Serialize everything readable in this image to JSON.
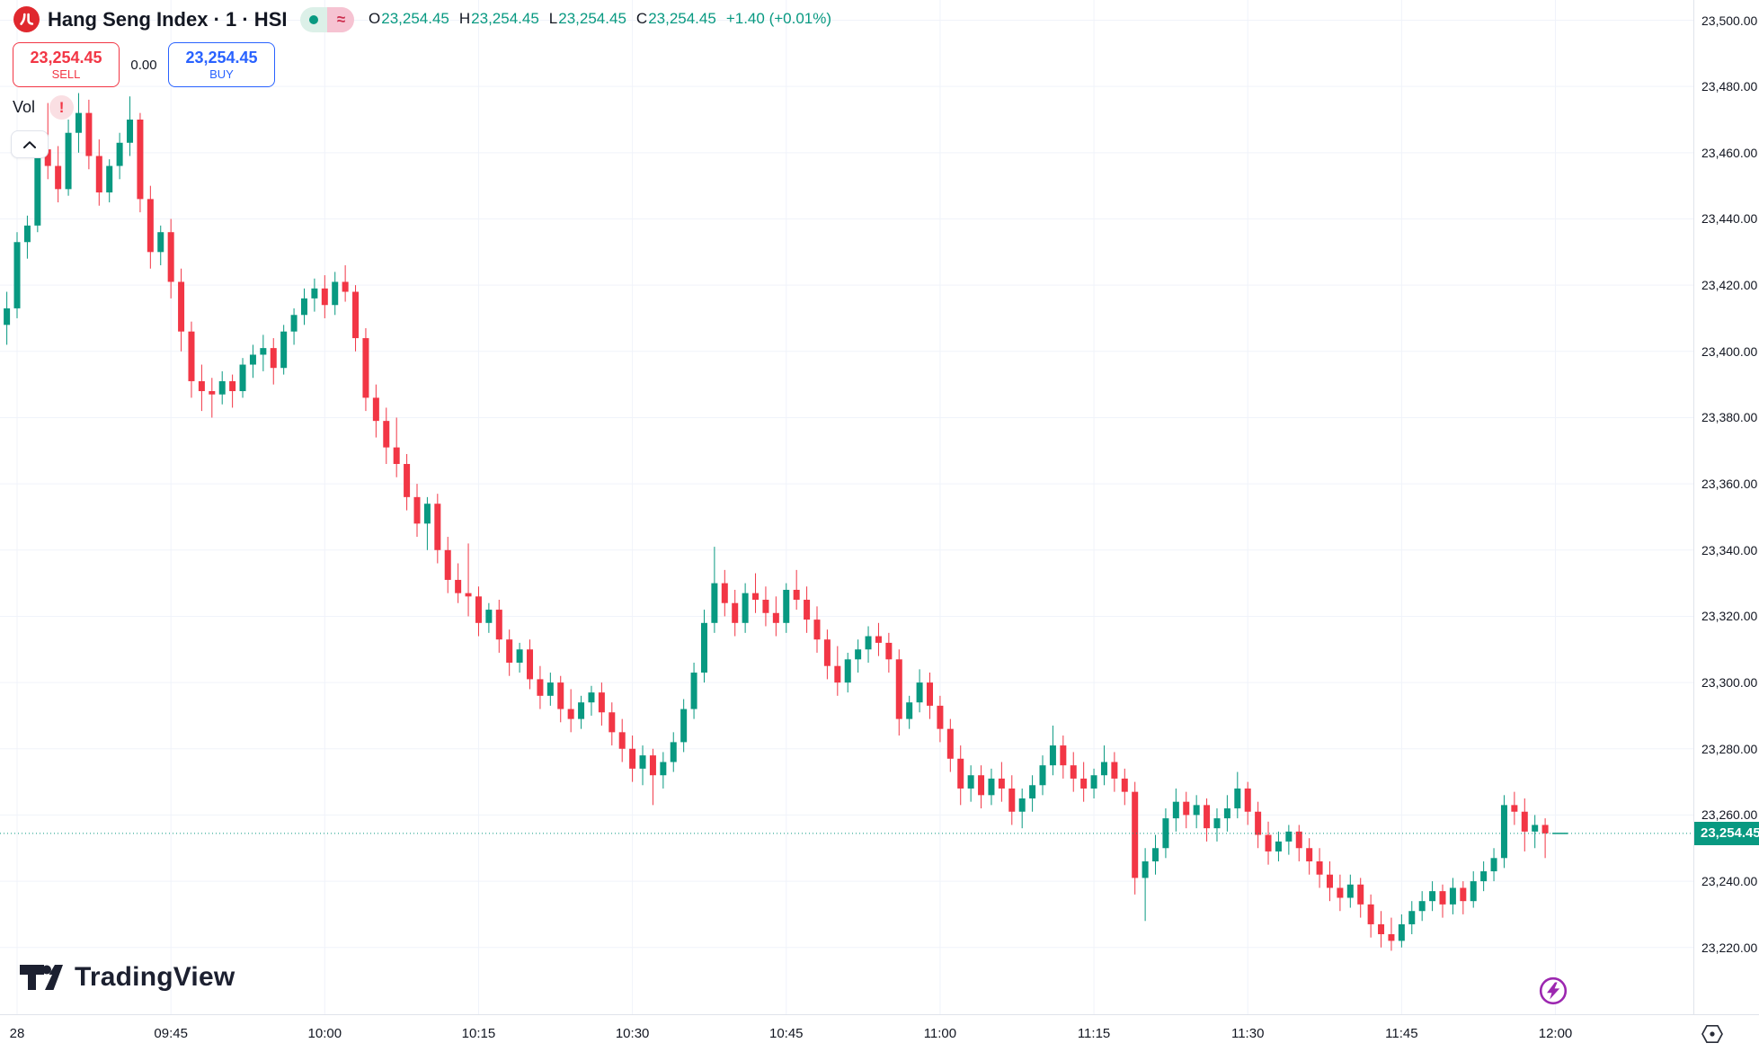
{
  "header": {
    "symbol_title": "Hang Seng Index · 1 · HSI",
    "delayed_symbol": "≈",
    "ohlc": {
      "open_label": "O",
      "open": "23,254.45",
      "high_label": "H",
      "high": "23,254.45",
      "low_label": "L",
      "low": "23,254.45",
      "close_label": "C",
      "close": "23,254.45",
      "change": "+1.40 (+0.01%)"
    },
    "sell": {
      "price": "23,254.45",
      "label": "SELL"
    },
    "spread": "0.00",
    "buy": {
      "price": "23,254.45",
      "label": "BUY"
    },
    "vol_label": "Vol",
    "warning_glyph": "!"
  },
  "watermark": {
    "text": "TradingView"
  },
  "colors": {
    "up": "#089981",
    "down": "#f23645",
    "sell_red": "#f23645",
    "buy_blue": "#2962ff",
    "text": "#131722",
    "grid": "#f0f3fa",
    "axis_border": "#e0e3eb",
    "badge_bg": "#089981",
    "boost_purple": "#9c27b0",
    "logo_red": "#e0282e"
  },
  "chart_data": {
    "type": "candlestick",
    "title": "Hang Seng Index",
    "symbol": "HSI",
    "interval": "1 minute",
    "start_time": "09:29",
    "end_time": "12:00",
    "last_price": "23,254.45",
    "last_price_value": 23254.45,
    "ylim": [
      23220,
      23500
    ],
    "grid": true,
    "price_ticks": [
      {
        "value": 23500,
        "label": "23,500.00"
      },
      {
        "value": 23480,
        "label": "23,480.00"
      },
      {
        "value": 23460,
        "label": "23,460.00"
      },
      {
        "value": 23440,
        "label": "23,440.00"
      },
      {
        "value": 23420,
        "label": "23,420.00"
      },
      {
        "value": 23400,
        "label": "23,400.00"
      },
      {
        "value": 23380,
        "label": "23,380.00"
      },
      {
        "value": 23360,
        "label": "23,360.00"
      },
      {
        "value": 23340,
        "label": "23,340.00"
      },
      {
        "value": 23320,
        "label": "23,320.00"
      },
      {
        "value": 23300,
        "label": "23,300.00"
      },
      {
        "value": 23280,
        "label": "23,280.00"
      },
      {
        "value": 23260,
        "label": "23,260.00"
      },
      {
        "value": 23240,
        "label": "23,240.00"
      },
      {
        "value": 23220,
        "label": "23,220.00"
      }
    ],
    "time_ticks": [
      {
        "minute": 1,
        "label": "28"
      },
      {
        "minute": 16,
        "label": "09:45"
      },
      {
        "minute": 31,
        "label": "10:00"
      },
      {
        "minute": 46,
        "label": "10:15"
      },
      {
        "minute": 61,
        "label": "10:30"
      },
      {
        "minute": 76,
        "label": "10:45"
      },
      {
        "minute": 91,
        "label": "11:00"
      },
      {
        "minute": 106,
        "label": "11:15"
      },
      {
        "minute": 121,
        "label": "11:30"
      },
      {
        "minute": 136,
        "label": "11:45"
      },
      {
        "minute": 151,
        "label": "12:00"
      }
    ],
    "candles": [
      [
        23408,
        23418,
        23402,
        23413
      ],
      [
        23413,
        23436,
        23410,
        23433
      ],
      [
        23433,
        23441,
        23428,
        23438
      ],
      [
        23438,
        23464,
        23436,
        23461
      ],
      [
        23461,
        23475,
        23452,
        23456
      ],
      [
        23456,
        23462,
        23445,
        23449
      ],
      [
        23449,
        23470,
        23447,
        23466
      ],
      [
        23466,
        23478,
        23460,
        23472
      ],
      [
        23472,
        23476,
        23455,
        23459
      ],
      [
        23459,
        23464,
        23444,
        23448
      ],
      [
        23448,
        23458,
        23445,
        23456
      ],
      [
        23456,
        23466,
        23452,
        23463
      ],
      [
        23463,
        23477,
        23459,
        23470
      ],
      [
        23470,
        23472,
        23442,
        23446
      ],
      [
        23446,
        23450,
        23425,
        23430
      ],
      [
        23430,
        23438,
        23426,
        23436
      ],
      [
        23436,
        23440,
        23416,
        23421
      ],
      [
        23421,
        23425,
        23400,
        23406
      ],
      [
        23406,
        23409,
        23386,
        23391
      ],
      [
        23391,
        23396,
        23382,
        23388
      ],
      [
        23388,
        23392,
        23380,
        23387
      ],
      [
        23387,
        23394,
        23384,
        23391
      ],
      [
        23391,
        23393,
        23383,
        23388
      ],
      [
        23388,
        23398,
        23386,
        23396
      ],
      [
        23396,
        23402,
        23392,
        23399
      ],
      [
        23399,
        23405,
        23394,
        23401
      ],
      [
        23401,
        23404,
        23390,
        23395
      ],
      [
        23395,
        23408,
        23393,
        23406
      ],
      [
        23406,
        23413,
        23402,
        23411
      ],
      [
        23411,
        23419,
        23408,
        23416
      ],
      [
        23416,
        23422,
        23412,
        23419
      ],
      [
        23419,
        23423,
        23410,
        23414
      ],
      [
        23414,
        23424,
        23411,
        23421
      ],
      [
        23421,
        23426,
        23415,
        23418
      ],
      [
        23418,
        23420,
        23400,
        23404
      ],
      [
        23404,
        23407,
        23382,
        23386
      ],
      [
        23386,
        23390,
        23374,
        23379
      ],
      [
        23379,
        23383,
        23366,
        23371
      ],
      [
        23371,
        23380,
        23362,
        23366
      ],
      [
        23366,
        23369,
        23352,
        23356
      ],
      [
        23356,
        23360,
        23344,
        23348
      ],
      [
        23348,
        23356,
        23340,
        23354
      ],
      [
        23354,
        23357,
        23336,
        23340
      ],
      [
        23340,
        23344,
        23327,
        23331
      ],
      [
        23331,
        23336,
        23324,
        23327
      ],
      [
        23327,
        23342,
        23320,
        23326
      ],
      [
        23326,
        23329,
        23314,
        23318
      ],
      [
        23318,
        23324,
        23315,
        23322
      ],
      [
        23322,
        23325,
        23309,
        23313
      ],
      [
        23313,
        23316,
        23302,
        23306
      ],
      [
        23306,
        23312,
        23303,
        23310
      ],
      [
        23310,
        23313,
        23298,
        23301
      ],
      [
        23301,
        23305,
        23292,
        23296
      ],
      [
        23296,
        23303,
        23293,
        23300
      ],
      [
        23300,
        23302,
        23288,
        23292
      ],
      [
        23292,
        23298,
        23285,
        23289
      ],
      [
        23289,
        23296,
        23286,
        23294
      ],
      [
        23294,
        23299,
        23290,
        23297
      ],
      [
        23297,
        23300,
        23287,
        23291
      ],
      [
        23291,
        23294,
        23281,
        23285
      ],
      [
        23285,
        23289,
        23276,
        23280
      ],
      [
        23280,
        23284,
        23270,
        23274
      ],
      [
        23274,
        23281,
        23269,
        23278
      ],
      [
        23278,
        23280,
        23263,
        23272
      ],
      [
        23272,
        23279,
        23268,
        23276
      ],
      [
        23276,
        23285,
        23273,
        23282
      ],
      [
        23282,
        23295,
        23279,
        23292
      ],
      [
        23292,
        23306,
        23289,
        23303
      ],
      [
        23303,
        23322,
        23300,
        23318
      ],
      [
        23318,
        23341,
        23315,
        23330
      ],
      [
        23330,
        23334,
        23320,
        23324
      ],
      [
        23324,
        23328,
        23314,
        23318
      ],
      [
        23318,
        23330,
        23315,
        23327
      ],
      [
        23327,
        23333,
        23321,
        23325
      ],
      [
        23325,
        23329,
        23317,
        23321
      ],
      [
        23321,
        23326,
        23314,
        23318
      ],
      [
        23318,
        23330,
        23315,
        23328
      ],
      [
        23328,
        23334,
        23322,
        23325
      ],
      [
        23325,
        23329,
        23315,
        23319
      ],
      [
        23319,
        23323,
        23309,
        23313
      ],
      [
        23313,
        23316,
        23301,
        23305
      ],
      [
        23305,
        23311,
        23296,
        23300
      ],
      [
        23300,
        23309,
        23297,
        23307
      ],
      [
        23307,
        23313,
        23303,
        23310
      ],
      [
        23310,
        23317,
        23306,
        23314
      ],
      [
        23314,
        23318,
        23308,
        23312
      ],
      [
        23312,
        23315,
        23303,
        23307
      ],
      [
        23307,
        23310,
        23284,
        23289
      ],
      [
        23289,
        23296,
        23286,
        23294
      ],
      [
        23294,
        23304,
        23291,
        23300
      ],
      [
        23300,
        23303,
        23289,
        23293
      ],
      [
        23293,
        23296,
        23282,
        23286
      ],
      [
        23286,
        23289,
        23273,
        23277
      ],
      [
        23277,
        23281,
        23263,
        23268
      ],
      [
        23268,
        23275,
        23264,
        23272
      ],
      [
        23272,
        23275,
        23262,
        23266
      ],
      [
        23266,
        23274,
        23263,
        23271
      ],
      [
        23271,
        23276,
        23264,
        23268
      ],
      [
        23268,
        23272,
        23257,
        23261
      ],
      [
        23261,
        23268,
        23256,
        23265
      ],
      [
        23265,
        23272,
        23261,
        23269
      ],
      [
        23269,
        23278,
        23266,
        23275
      ],
      [
        23275,
        23287,
        23272,
        23281
      ],
      [
        23281,
        23284,
        23271,
        23275
      ],
      [
        23275,
        23279,
        23267,
        23271
      ],
      [
        23271,
        23276,
        23264,
        23268
      ],
      [
        23268,
        23274,
        23265,
        23272
      ],
      [
        23272,
        23281,
        23269,
        23276
      ],
      [
        23276,
        23279,
        23267,
        23271
      ],
      [
        23271,
        23274,
        23263,
        23267
      ],
      [
        23267,
        23270,
        23236,
        23241
      ],
      [
        23241,
        23250,
        23228,
        23246
      ],
      [
        23246,
        23254,
        23242,
        23250
      ],
      [
        23250,
        23262,
        23247,
        23259
      ],
      [
        23259,
        23268,
        23255,
        23264
      ],
      [
        23264,
        23267,
        23256,
        23260
      ],
      [
        23260,
        23266,
        23256,
        23263
      ],
      [
        23263,
        23265,
        23252,
        23256
      ],
      [
        23256,
        23262,
        23252,
        23259
      ],
      [
        23259,
        23266,
        23255,
        23262
      ],
      [
        23262,
        23273,
        23259,
        23268
      ],
      [
        23268,
        23270,
        23257,
        23261
      ],
      [
        23261,
        23264,
        23250,
        23254
      ],
      [
        23254,
        23258,
        23245,
        23249
      ],
      [
        23249,
        23255,
        23246,
        23252
      ],
      [
        23252,
        23257,
        23248,
        23255
      ],
      [
        23255,
        23257,
        23246,
        23250
      ],
      [
        23250,
        23253,
        23242,
        23246
      ],
      [
        23246,
        23250,
        23238,
        23242
      ],
      [
        23242,
        23246,
        23234,
        23238
      ],
      [
        23238,
        23242,
        23231,
        23235
      ],
      [
        23235,
        23242,
        23232,
        23239
      ],
      [
        23239,
        23241,
        23229,
        23233
      ],
      [
        23233,
        23236,
        23223,
        23227
      ],
      [
        23227,
        23231,
        23220,
        23224
      ],
      [
        23224,
        23229,
        23219,
        23222
      ],
      [
        23222,
        23230,
        23220,
        23227
      ],
      [
        23227,
        23234,
        23224,
        23231
      ],
      [
        23231,
        23237,
        23228,
        23234
      ],
      [
        23234,
        23240,
        23231,
        23237
      ],
      [
        23237,
        23239,
        23229,
        23233
      ],
      [
        23233,
        23241,
        23230,
        23238
      ],
      [
        23238,
        23240,
        23230,
        23234
      ],
      [
        23234,
        23243,
        23232,
        23240
      ],
      [
        23240,
        23246,
        23237,
        23243
      ],
      [
        23243,
        23250,
        23240,
        23247
      ],
      [
        23247,
        23266,
        23244,
        23263
      ],
      [
        23263,
        23267,
        23257,
        23261
      ],
      [
        23261,
        23265,
        23249,
        23255
      ],
      [
        23255,
        23260,
        23250,
        23257
      ],
      [
        23257,
        23259,
        23247,
        23254.45
      ]
    ]
  }
}
